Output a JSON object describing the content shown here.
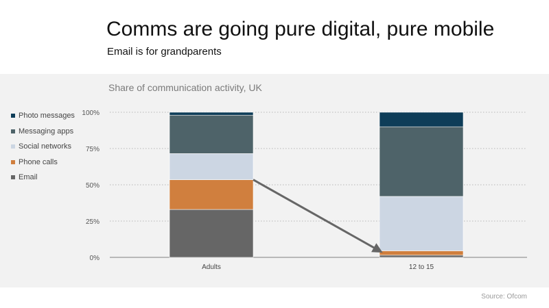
{
  "slide": {
    "title": "Comms are going pure digital, pure mobile",
    "subtitle": "Email is for grandparents",
    "source": "Source: Ofcom"
  },
  "chart_data": {
    "type": "bar",
    "stacked": true,
    "title": "Share of communication activity, UK",
    "xlabel": "",
    "ylabel": "",
    "categories": [
      "Adults",
      "12 to 15"
    ],
    "ylim": [
      0,
      100
    ],
    "yticks": [
      0,
      25,
      50,
      75,
      100
    ],
    "ytick_labels": [
      "0%",
      "25%",
      "50%",
      "75%",
      "100%"
    ],
    "grid": true,
    "legend_position": "left",
    "series": [
      {
        "name": "Email",
        "color": "#666666",
        "values": [
          33,
          1.5
        ]
      },
      {
        "name": "Phone calls",
        "color": "#d07f3e",
        "values": [
          20.5,
          3
        ]
      },
      {
        "name": "Social networks",
        "color": "#ccd6e3",
        "values": [
          18,
          37.5
        ]
      },
      {
        "name": "Messaging apps",
        "color": "#4e6369",
        "values": [
          26.5,
          48
        ]
      },
      {
        "name": "Photo messages",
        "color": "#0e3d58",
        "values": [
          2,
          10
        ]
      }
    ],
    "annotations": [
      {
        "type": "arrow",
        "from": {
          "category": "Adults",
          "y": 53.5
        },
        "to": {
          "category": "12 to 15",
          "y": 4.5
        },
        "color": "#666666"
      }
    ]
  }
}
